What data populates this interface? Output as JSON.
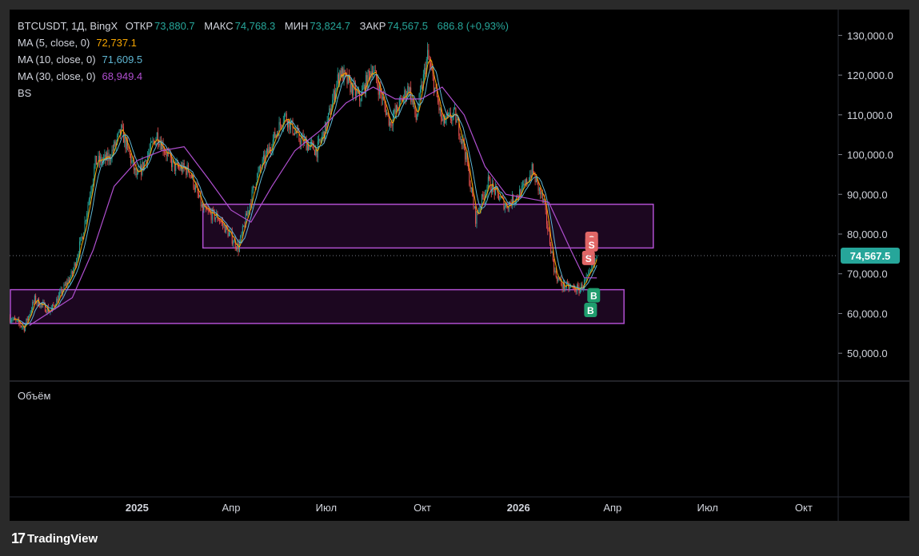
{
  "header": {
    "symbol": "BTCUSDT, 1Д, BingX",
    "open_label": "ОТКР",
    "open_value": "73,880.7",
    "high_label": "МАКС",
    "high_value": "74,768.3",
    "low_label": "МИН",
    "low_value": "73,824.7",
    "close_label": "ЗАКР",
    "close_value": "74,567.5",
    "change": "686.8 (+0,93%)"
  },
  "indicators": [
    {
      "label": "MA (5, close, 0)",
      "value": "72,737.1",
      "color": "#f7a600"
    },
    {
      "label": "MA (10, close, 0)",
      "value": "71,609.5",
      "color": "#5fb7d4"
    },
    {
      "label": "MA (30, close, 0)",
      "value": "68,949.4",
      "color": "#b04fd0"
    },
    {
      "label": "BS",
      "value": "",
      "color": "#d1d4dc"
    }
  ],
  "volume_label": "Объём",
  "current_price_label": "74,567.5",
  "signals": {
    "sell": "S",
    "buy": "B"
  },
  "footer": {
    "brand": "TradingView",
    "logo": "17"
  },
  "colors": {
    "up": "#26a69a",
    "down": "#ef5350",
    "zone": "#9c27b0",
    "price_tag": "#26a69a",
    "sell_badge": "#e06666",
    "buy_badge": "#1f9d6e"
  },
  "chart_data": {
    "type": "candlestick",
    "y_ticks": [
      "130,000.0",
      "120,000.0",
      "110,000.0",
      "100,000.0",
      "90,000.0",
      "80,000.0",
      "70,000.0",
      "60,000.0",
      "50,000.0"
    ],
    "y_tick_values": [
      130000,
      120000,
      110000,
      100000,
      90000,
      80000,
      70000,
      60000,
      50000
    ],
    "ylim": [
      43000,
      136500
    ],
    "x_ticks": [
      "2025",
      "Апр",
      "Июл",
      "Окт",
      "2026",
      "Апр",
      "Июл",
      "Окт"
    ],
    "x_tick_dates": [
      "2025-01-01",
      "2025-04-01",
      "2025-07-01",
      "2025-10-01",
      "2026-01-01",
      "2026-04-01",
      "2026-07-01",
      "2026-10-01"
    ],
    "x_range": [
      "2024-09-01",
      "2026-11-03"
    ],
    "last_price": 74567.5,
    "zones": [
      {
        "start": "2025-03-05",
        "end": "2026-05-10",
        "low": 76500,
        "high": 87500
      },
      {
        "start": "2024-09-01",
        "end": "2026-04-12",
        "low": 57500,
        "high": 66000
      }
    ],
    "close_path": [
      [
        "2024-09-01",
        59000
      ],
      [
        "2024-09-15",
        56500
      ],
      [
        "2024-09-25",
        63500
      ],
      [
        "2024-10-10",
        60500
      ],
      [
        "2024-10-31",
        70000
      ],
      [
        "2024-11-10",
        80000
      ],
      [
        "2024-11-22",
        98000
      ],
      [
        "2024-12-05",
        99000
      ],
      [
        "2024-12-17",
        106000
      ],
      [
        "2025-01-01",
        94000
      ],
      [
        "2025-01-20",
        105000
      ],
      [
        "2025-02-05",
        97000
      ],
      [
        "2025-02-20",
        96000
      ],
      [
        "2025-03-05",
        86000
      ],
      [
        "2025-03-20",
        84000
      ],
      [
        "2025-04-08",
        76500
      ],
      [
        "2025-04-25",
        94000
      ],
      [
        "2025-05-10",
        103000
      ],
      [
        "2025-05-22",
        110000
      ],
      [
        "2025-06-05",
        104000
      ],
      [
        "2025-06-22",
        101000
      ],
      [
        "2025-07-01",
        107000
      ],
      [
        "2025-07-14",
        121000
      ],
      [
        "2025-08-02",
        114000
      ],
      [
        "2025-08-14",
        122000
      ],
      [
        "2025-08-31",
        108000
      ],
      [
        "2025-09-18",
        117000
      ],
      [
        "2025-09-25",
        109000
      ],
      [
        "2025-10-06",
        125000
      ],
      [
        "2025-10-20",
        108000
      ],
      [
        "2025-11-01",
        110000
      ],
      [
        "2025-11-10",
        102000
      ],
      [
        "2025-11-21",
        84000
      ],
      [
        "2025-12-03",
        93000
      ],
      [
        "2025-12-20",
        87000
      ],
      [
        "2026-01-05",
        91000
      ],
      [
        "2026-01-14",
        96000
      ],
      [
        "2026-01-25",
        88000
      ],
      [
        "2026-02-05",
        70000
      ],
      [
        "2026-02-12",
        67000
      ],
      [
        "2026-02-28",
        66000
      ],
      [
        "2026-03-10",
        69500
      ],
      [
        "2026-03-17",
        74567.5
      ]
    ],
    "ma30_path": [
      [
        "2024-09-20",
        57000
      ],
      [
        "2024-10-31",
        64000
      ],
      [
        "2024-11-20",
        76000
      ],
      [
        "2024-12-10",
        92000
      ],
      [
        "2025-01-01",
        98500
      ],
      [
        "2025-01-25",
        101000
      ],
      [
        "2025-02-15",
        102000
      ],
      [
        "2025-03-10",
        94000
      ],
      [
        "2025-04-01",
        86000
      ],
      [
        "2025-04-20",
        83000
      ],
      [
        "2025-05-10",
        92000
      ],
      [
        "2025-06-01",
        101000
      ],
      [
        "2025-06-25",
        106000
      ],
      [
        "2025-07-20",
        113000
      ],
      [
        "2025-08-15",
        117000
      ],
      [
        "2025-09-05",
        114000
      ],
      [
        "2025-09-30",
        114000
      ],
      [
        "2025-10-20",
        117000
      ],
      [
        "2025-11-10",
        110000
      ],
      [
        "2025-11-30",
        97000
      ],
      [
        "2025-12-20",
        90000
      ],
      [
        "2026-01-10",
        89000
      ],
      [
        "2026-01-30",
        88000
      ],
      [
        "2026-02-20",
        76000
      ],
      [
        "2026-03-05",
        69000
      ],
      [
        "2026-03-17",
        68949.4
      ]
    ],
    "signals": [
      {
        "type": "sell",
        "date": "2026-03-12",
        "price": 78800
      },
      {
        "type": "sell",
        "date": "2026-03-12",
        "price": 77400
      },
      {
        "type": "sell",
        "date": "2026-03-09",
        "price": 74000
      },
      {
        "type": "buy",
        "date": "2026-03-14",
        "price": 64600
      },
      {
        "type": "buy",
        "date": "2026-03-11",
        "price": 60900
      }
    ]
  }
}
